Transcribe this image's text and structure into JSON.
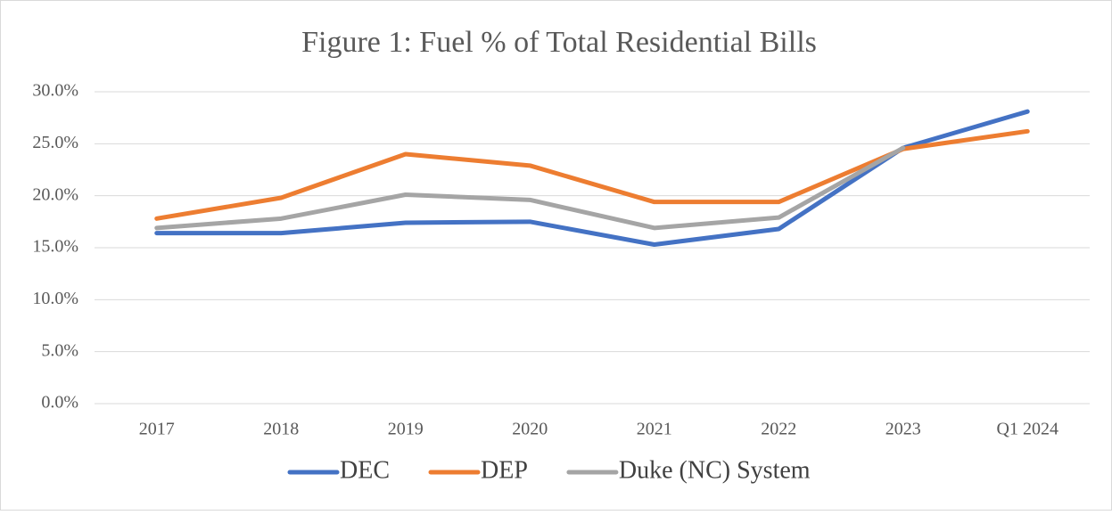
{
  "chart_data": {
    "type": "line",
    "title": "Figure 1: Fuel % of Total Residential Bills",
    "categories": [
      "2017",
      "2018",
      "2019",
      "2020",
      "2021",
      "2022",
      "2023",
      "Q1 2024"
    ],
    "series": [
      {
        "name": "DEC",
        "color": "#4472c4",
        "values": [
          16.4,
          16.4,
          17.4,
          17.5,
          15.3,
          16.8,
          24.6,
          28.1
        ]
      },
      {
        "name": "DEP",
        "color": "#ed7d31",
        "values": [
          17.8,
          19.8,
          24.0,
          22.9,
          19.4,
          19.4,
          24.5,
          26.2
        ]
      },
      {
        "name": "Duke (NC) System",
        "color": "#a5a5a5",
        "values": [
          16.9,
          17.8,
          20.1,
          19.6,
          16.9,
          17.9,
          24.6,
          null
        ]
      }
    ],
    "ylim": [
      0,
      30
    ],
    "yticks": [
      {
        "value": 0,
        "label": "0.0%"
      },
      {
        "value": 5,
        "label": "5.0%"
      },
      {
        "value": 10,
        "label": "10.0%"
      },
      {
        "value": 15,
        "label": "15.0%"
      },
      {
        "value": 20,
        "label": "20.0%"
      },
      {
        "value": 25,
        "label": "25.0%"
      },
      {
        "value": 30,
        "label": "30.0%"
      }
    ],
    "grid": true,
    "legend": "bottom"
  }
}
